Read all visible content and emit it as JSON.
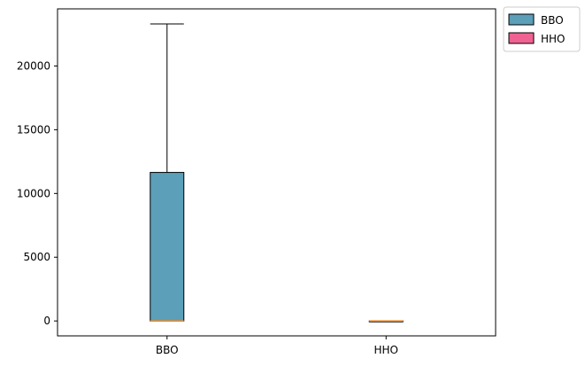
{
  "chart_data": {
    "type": "box",
    "categories": [
      "BBO",
      "HHO"
    ],
    "series": [
      {
        "name": "BBO",
        "color": "#5b9fb8",
        "min": 0,
        "q1": 0,
        "median": 0,
        "q3": 11650,
        "max": 23300
      },
      {
        "name": "HHO",
        "color": "#f06292",
        "min": 0,
        "q1": 0,
        "median": 0,
        "q3": 0,
        "max": 0
      }
    ],
    "median_color": "#f28e2b",
    "ylim": [
      -1170,
      24480
    ],
    "yticks": [
      0,
      5000,
      10000,
      15000,
      20000
    ],
    "ytick_labels": [
      "0",
      "5000",
      "10000",
      "15000",
      "20000"
    ],
    "grid": false,
    "legend": {
      "placement": "outside-top-right",
      "entries": [
        "BBO",
        "HHO"
      ]
    }
  }
}
